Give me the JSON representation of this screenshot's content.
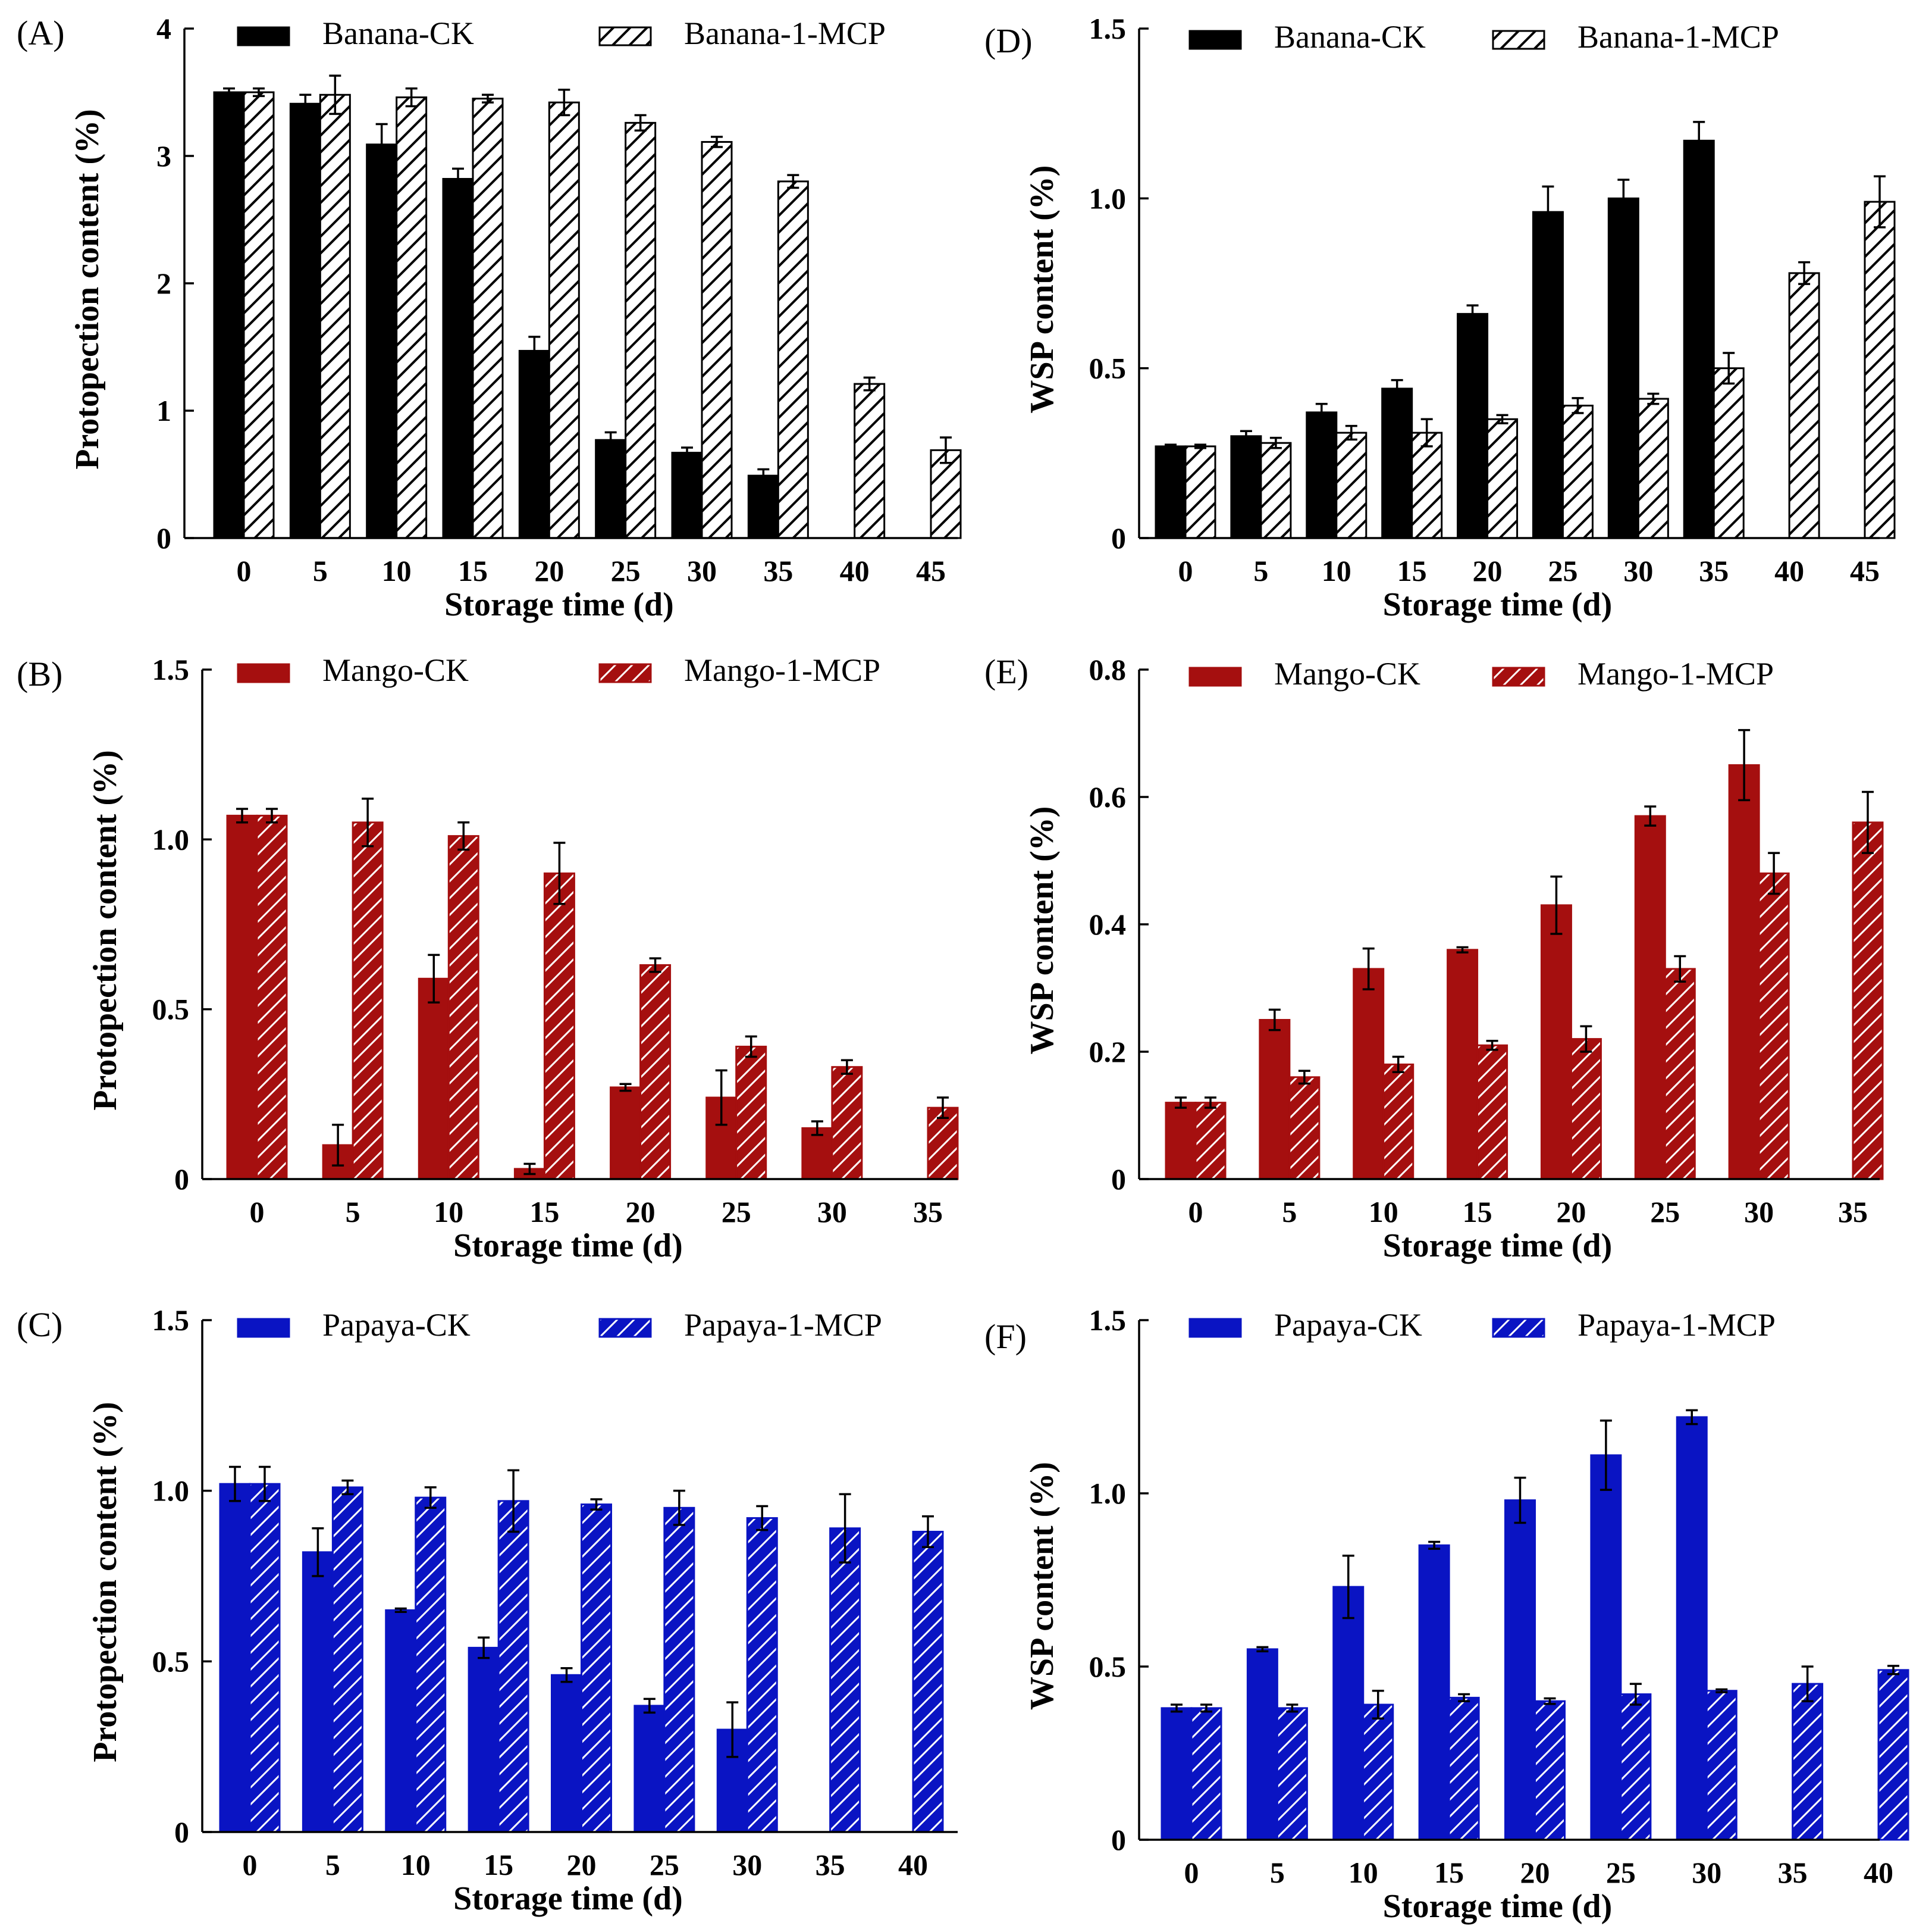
{
  "chart_data": [
    {
      "id": "A",
      "panel_label": "(A)",
      "type": "bar",
      "color": "#000000",
      "categories": [
        "0",
        "5",
        "10",
        "15",
        "20",
        "25",
        "30",
        "35",
        "40",
        "45"
      ],
      "series": [
        {
          "name": "Banana-CK",
          "pattern": "solid",
          "values": [
            3.5,
            3.41,
            3.09,
            2.82,
            1.47,
            0.77,
            0.67,
            0.49,
            null,
            null
          ],
          "errors": [
            0.03,
            0.07,
            0.16,
            0.08,
            0.11,
            0.06,
            0.04,
            0.05,
            null,
            null
          ]
        },
        {
          "name": "Banana-1-MCP",
          "pattern": "hatched",
          "values": [
            3.5,
            3.48,
            3.46,
            3.45,
            3.42,
            3.26,
            3.11,
            2.8,
            1.21,
            0.69
          ],
          "errors": [
            0.03,
            0.15,
            0.07,
            0.03,
            0.1,
            0.06,
            0.04,
            0.05,
            0.05,
            0.1
          ]
        }
      ],
      "ylim": [
        0,
        4
      ],
      "yticks": [
        "0",
        "1",
        "2",
        "3",
        "4"
      ],
      "ytick_values": [
        0,
        1,
        2,
        3,
        4
      ],
      "ylabel": "Protopection content (%)",
      "xlabel": "Storage time (d)"
    },
    {
      "id": "B",
      "panel_label": "(B)",
      "type": "bar",
      "color": "#a50f0f",
      "categories": [
        "0",
        "5",
        "10",
        "15",
        "20",
        "25",
        "30",
        "35"
      ],
      "series": [
        {
          "name": "Mango-CK",
          "pattern": "solid",
          "values": [
            1.07,
            0.1,
            0.59,
            0.03,
            0.27,
            0.24,
            0.15,
            null
          ],
          "errors": [
            0.02,
            0.06,
            0.07,
            0.015,
            0.01,
            0.08,
            0.02,
            null
          ]
        },
        {
          "name": "Mango-1-MCP",
          "pattern": "hatched",
          "values": [
            1.07,
            1.05,
            1.01,
            0.9,
            0.63,
            0.39,
            0.33,
            0.21
          ],
          "errors": [
            0.02,
            0.07,
            0.04,
            0.09,
            0.02,
            0.03,
            0.02,
            0.03
          ]
        }
      ],
      "ylim": [
        0,
        1.5
      ],
      "yticks": [
        "0",
        "0.5",
        "1.0",
        "1.5"
      ],
      "ytick_values": [
        0,
        0.5,
        1.0,
        1.5
      ],
      "ylabel": "Protopection content (%)",
      "xlabel": "Storage time (d)"
    },
    {
      "id": "C",
      "panel_label": "(C)",
      "type": "bar",
      "color": "#0a14c3",
      "categories": [
        "0",
        "5",
        "10",
        "15",
        "20",
        "25",
        "30",
        "35",
        "40"
      ],
      "series": [
        {
          "name": "Papaya-CK",
          "pattern": "solid",
          "values": [
            1.02,
            0.82,
            0.65,
            0.54,
            0.46,
            0.37,
            0.3,
            null,
            null
          ],
          "errors": [
            0.05,
            0.07,
            0.005,
            0.03,
            0.02,
            0.02,
            0.08,
            null,
            null
          ]
        },
        {
          "name": "Papaya-1-MCP",
          "pattern": "hatched",
          "values": [
            1.02,
            1.01,
            0.98,
            0.97,
            0.96,
            0.95,
            0.92,
            0.89,
            0.88
          ],
          "errors": [
            0.05,
            0.02,
            0.03,
            0.09,
            0.015,
            0.05,
            0.035,
            0.1,
            0.045
          ]
        }
      ],
      "ylim": [
        0,
        1.5
      ],
      "yticks": [
        "0",
        "0.5",
        "1.0",
        "1.5"
      ],
      "ytick_values": [
        0,
        0.5,
        1.0,
        1.5
      ],
      "ylabel": "Protopection content (%)",
      "xlabel": "Storage time (d)"
    },
    {
      "id": "D",
      "panel_label": "(D)",
      "type": "bar",
      "color": "#000000",
      "categories": [
        "0",
        "5",
        "10",
        "15",
        "20",
        "25",
        "30",
        "35",
        "40",
        "45"
      ],
      "series": [
        {
          "name": "Banana-CK",
          "pattern": "solid",
          "values": [
            0.27,
            0.3,
            0.37,
            0.44,
            0.66,
            0.96,
            1.0,
            1.17,
            null,
            null
          ],
          "errors": [
            0.005,
            0.015,
            0.025,
            0.025,
            0.025,
            0.075,
            0.055,
            0.055,
            null,
            null
          ]
        },
        {
          "name": "Banana-1-MCP",
          "pattern": "hatched",
          "values": [
            0.27,
            0.28,
            0.31,
            0.31,
            0.35,
            0.39,
            0.41,
            0.5,
            0.78,
            0.99
          ],
          "errors": [
            0.005,
            0.015,
            0.02,
            0.04,
            0.012,
            0.022,
            0.015,
            0.045,
            0.032,
            0.075
          ]
        }
      ],
      "ylim": [
        0,
        1.5
      ],
      "yticks": [
        "0",
        "0.5",
        "1.0",
        "1.5"
      ],
      "ytick_values": [
        0,
        0.5,
        1.0,
        1.5
      ],
      "ylabel": "WSP content (%)",
      "xlabel": "Storage time (d)"
    },
    {
      "id": "E",
      "panel_label": "(E)",
      "type": "bar",
      "color": "#a50f0f",
      "categories": [
        "0",
        "5",
        "10",
        "15",
        "20",
        "25",
        "30",
        "35"
      ],
      "series": [
        {
          "name": "Mango-CK",
          "pattern": "solid",
          "values": [
            0.12,
            0.25,
            0.33,
            0.36,
            0.43,
            0.57,
            0.65,
            null
          ],
          "errors": [
            0.008,
            0.016,
            0.032,
            0.004,
            0.045,
            0.015,
            0.055,
            null
          ]
        },
        {
          "name": "Mango-1-MCP",
          "pattern": "hatched",
          "values": [
            0.12,
            0.16,
            0.18,
            0.21,
            0.22,
            0.33,
            0.48,
            0.56
          ],
          "errors": [
            0.008,
            0.01,
            0.012,
            0.007,
            0.02,
            0.02,
            0.032,
            0.048
          ]
        }
      ],
      "ylim": [
        0,
        0.8
      ],
      "yticks": [
        "0",
        "0.2",
        "0.4",
        "0.6",
        "0.8"
      ],
      "ytick_values": [
        0,
        0.2,
        0.4,
        0.6,
        0.8
      ],
      "ylabel": "WSP content (%)",
      "xlabel": "Storage time (d)"
    },
    {
      "id": "F",
      "panel_label": "(F)",
      "type": "bar",
      "color": "#0a14c3",
      "categories": [
        "0",
        "5",
        "10",
        "15",
        "20",
        "25",
        "30",
        "35",
        "40"
      ],
      "series": [
        {
          "name": "Papaya-CK",
          "pattern": "solid",
          "values": [
            0.38,
            0.55,
            0.73,
            0.85,
            0.98,
            1.11,
            1.22,
            null,
            null
          ],
          "errors": [
            0.01,
            0.006,
            0.09,
            0.01,
            0.065,
            0.1,
            0.02,
            null,
            null
          ]
        },
        {
          "name": "Papaya-1-MCP",
          "pattern": "hatched",
          "values": [
            0.38,
            0.38,
            0.39,
            0.41,
            0.4,
            0.42,
            0.43,
            0.45,
            0.49
          ],
          "errors": [
            0.01,
            0.01,
            0.04,
            0.01,
            0.008,
            0.03,
            0.004,
            0.05,
            0.012
          ]
        }
      ],
      "ylim": [
        0,
        1.5
      ],
      "yticks": [
        "0",
        "0.5",
        "1.0",
        "1.5"
      ],
      "ytick_values": [
        0,
        0.5,
        1.0,
        1.5
      ],
      "ylabel": "WSP content (%)",
      "xlabel": "Storage time (d)"
    }
  ]
}
